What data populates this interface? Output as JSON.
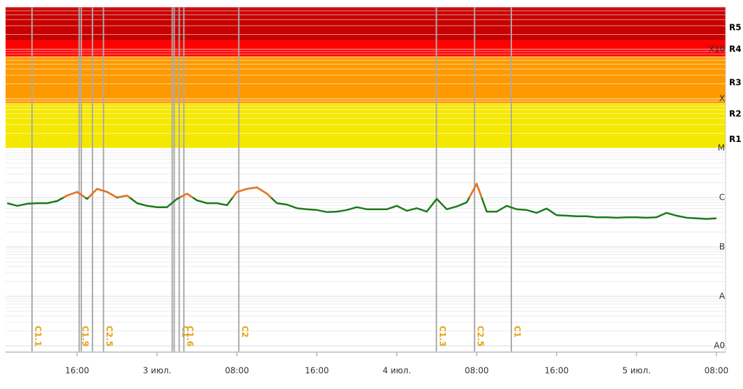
{
  "chart_data": {
    "type": "line",
    "log_scale_y": true,
    "grid": true,
    "xlim": [
      "07-02T08:50",
      "07-05T08:55"
    ],
    "xticks": [
      {
        "value": "07-02T16:00",
        "label": "16:00"
      },
      {
        "value": "07-03T00:00",
        "label": "3 июл."
      },
      {
        "value": "07-03T08:00",
        "label": "08:00"
      },
      {
        "value": "07-03T16:00",
        "label": "16:00"
      },
      {
        "value": "07-04T00:00",
        "label": "4 июл."
      },
      {
        "value": "07-04T08:00",
        "label": "08:00"
      },
      {
        "value": "07-04T16:00",
        "label": "16:00"
      },
      {
        "value": "07-05T00:00",
        "label": "5 июл."
      },
      {
        "value": "07-05T08:00",
        "label": "08:00"
      }
    ],
    "ylim": [
      7.7e-10,
      0.0072
    ],
    "yticks": [
      {
        "value": 1e-09,
        "label": "A0"
      },
      {
        "value": 1e-08,
        "label": "A"
      },
      {
        "value": 1e-07,
        "label": "B"
      },
      {
        "value": 1e-06,
        "label": "C"
      },
      {
        "value": 1e-05,
        "label": "M"
      },
      {
        "value": 0.0001,
        "label": "X"
      },
      {
        "value": 0.001,
        "label": "X10"
      }
    ],
    "bands": [
      {
        "from": 1e-05,
        "to": 8e-05,
        "color": "#f5e800"
      },
      {
        "from": 8e-05,
        "to": 0.00072,
        "color": "#ff9900"
      },
      {
        "from": 0.00072,
        "to": 0.0015,
        "color": "#ff0000"
      },
      {
        "from": 0.0015,
        "to": 0.0072,
        "color": "#c80000"
      }
    ],
    "levels": [
      {
        "label": "R1",
        "value": 1.5e-05
      },
      {
        "label": "R2",
        "value": 4.9e-05
      },
      {
        "label": "R3",
        "value": 0.00021
      },
      {
        "label": "R4",
        "value": 0.001
      },
      {
        "label": "R5",
        "value": 0.0027
      }
    ],
    "events": [
      {
        "time": "07-02T11:29",
        "label": "C1.1"
      },
      {
        "time": "07-02T16:12",
        "label": "C1.9"
      },
      {
        "time": "07-02T16:25",
        "label": null
      },
      {
        "time": "07-02T17:32",
        "label": null
      },
      {
        "time": "07-02T18:38",
        "label": "C2.5"
      },
      {
        "time": "07-03T01:31",
        "label": null
      },
      {
        "time": "07-03T01:43",
        "label": null
      },
      {
        "time": "07-03T02:13",
        "label": "C1"
      },
      {
        "time": "07-03T02:41",
        "label": "C1.6"
      },
      {
        "time": "07-03T08:11",
        "label": "C2"
      },
      {
        "time": "07-04T03:58",
        "label": "C1.3"
      },
      {
        "time": "07-04T07:47",
        "label": "C2.5"
      },
      {
        "time": "07-04T11:28",
        "label": "C1"
      }
    ],
    "threshold": 1e-06,
    "color": "#1a7a1a",
    "color_above": "#f07020",
    "event_color": "#aaaaaa",
    "x": [
      "07-02T09:00",
      "07-02T10:00",
      "07-02T11:00",
      "07-02T12:00",
      "07-02T13:00",
      "07-02T14:00",
      "07-02T15:00",
      "07-02T16:00",
      "07-02T17:00",
      "07-02T18:00",
      "07-02T19:00",
      "07-02T20:00",
      "07-02T21:00",
      "07-02T22:00",
      "07-02T23:00",
      "07-03T00:00",
      "07-03T01:00",
      "07-03T02:00",
      "07-03T03:00",
      "07-03T04:00",
      "07-03T05:00",
      "07-03T06:00",
      "07-03T07:00",
      "07-03T08:00",
      "07-03T09:00",
      "07-03T10:00",
      "07-03T11:00",
      "07-03T12:00",
      "07-03T13:00",
      "07-03T14:00",
      "07-03T15:00",
      "07-03T16:00",
      "07-03T17:00",
      "07-03T18:00",
      "07-03T19:00",
      "07-03T20:00",
      "07-03T21:00",
      "07-03T22:00",
      "07-03T23:00",
      "07-04T00:00",
      "07-04T01:00",
      "07-04T02:00",
      "07-04T03:00",
      "07-04T04:00",
      "07-04T05:00",
      "07-04T06:00",
      "07-04T07:00",
      "07-04T08:00",
      "07-04T09:00",
      "07-04T10:00",
      "07-04T11:00",
      "07-04T12:00",
      "07-04T13:00",
      "07-04T14:00",
      "07-04T15:00",
      "07-04T16:00",
      "07-04T17:00",
      "07-04T18:00",
      "07-04T19:00",
      "07-04T20:00",
      "07-04T21:00",
      "07-04T22:00",
      "07-04T23:00",
      "07-05T00:00",
      "07-05T01:00",
      "07-05T02:00",
      "07-05T03:00",
      "07-05T04:00",
      "07-05T05:00",
      "07-05T06:00",
      "07-05T07:00",
      "07-05T08:00"
    ],
    "values": [
      7.7e-07,
      6.8e-07,
      7.5e-07,
      7.7e-07,
      7.7e-07,
      8.5e-07,
      1.1e-06,
      1.3e-06,
      9.4e-07,
      1.5e-06,
      1.3e-06,
      1e-06,
      1.1e-06,
      7.7e-07,
      6.8e-07,
      6.4e-07,
      6.4e-07,
      9.4e-07,
      1.2e-06,
      8.8e-07,
      7.7e-07,
      7.7e-07,
      7e-07,
      1.3e-06,
      1.5e-06,
      1.6e-06,
      1.2e-06,
      7.7e-07,
      7.2e-07,
      6.1e-07,
      5.8e-07,
      5.6e-07,
      5.1e-07,
      5.2e-07,
      5.6e-07,
      6.4e-07,
      5.8e-07,
      5.8e-07,
      5.8e-07,
      6.8e-07,
      5.4e-07,
      6.1e-07,
      5.2e-07,
      9.4e-07,
      5.8e-07,
      6.6e-07,
      8e-07,
      1.9e-06,
      5.2e-07,
      5.2e-07,
      6.8e-07,
      5.8e-07,
      5.6e-07,
      4.9e-07,
      6e-07,
      4.4e-07,
      4.3e-07,
      4.2e-07,
      4.2e-07,
      4e-07,
      4e-07,
      3.9e-07,
      4e-07,
      4e-07,
      3.9e-07,
      4e-07,
      4.9e-07,
      4.3e-07,
      3.9e-07,
      3.8e-07,
      3.7e-07,
      3.8e-07
    ]
  }
}
